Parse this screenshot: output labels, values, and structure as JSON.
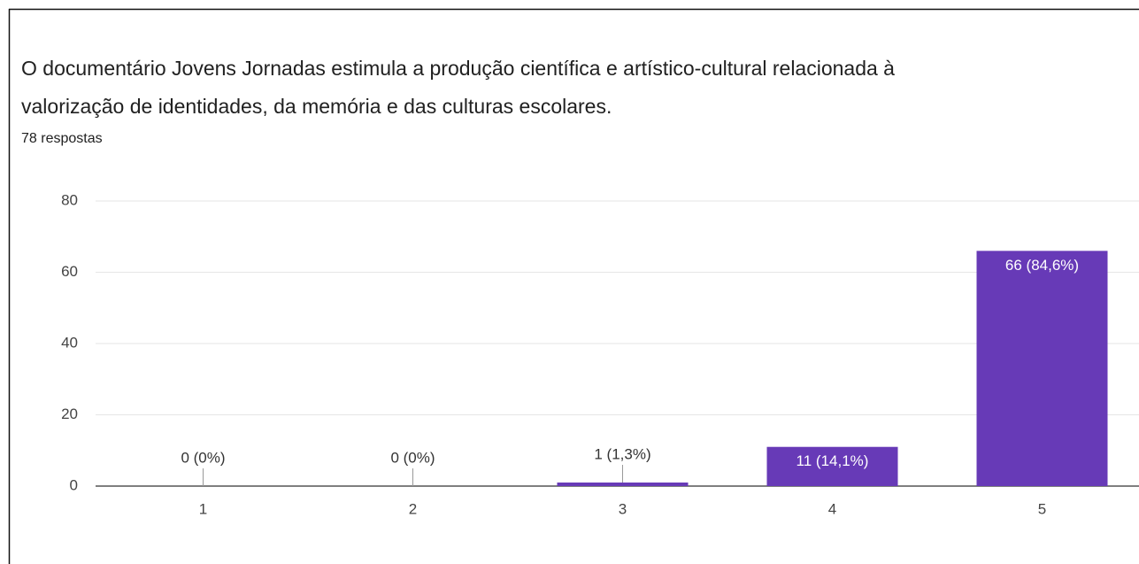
{
  "chart_data": {
    "type": "bar",
    "title": "O documentário Jovens Jornadas estimula a produção científica e artístico-cultural relacionada à",
    "title_line2": "valorização de identidades, da memória e das culturas escolares.",
    "subtitle": "78 respostas",
    "categories": [
      "1",
      "2",
      "3",
      "4",
      "5"
    ],
    "values": [
      0,
      0,
      1,
      11,
      66
    ],
    "value_labels": [
      "0 (0%)",
      "0 (0%)",
      "1 (1,3%)",
      "11 (14,1%)",
      "66 (84,6%)"
    ],
    "color": "#673ab7",
    "ylim": [
      0,
      80
    ],
    "yticks": [
      0,
      20,
      40,
      60,
      80
    ],
    "grid": true
  }
}
